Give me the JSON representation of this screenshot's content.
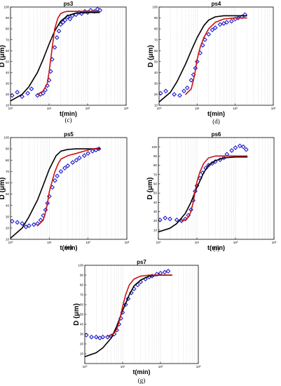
{
  "chart_data": [
    {
      "type": "scatter",
      "panel_label": "(c)",
      "title": "ps3",
      "xlabel": "t(min)",
      "ylabel": "D (μm)",
      "xscale": "log",
      "xlim": [
        1,
        1000
      ],
      "ylim": [
        10,
        100
      ],
      "yticks": [
        10,
        20,
        30,
        40,
        50,
        60,
        70,
        80,
        90,
        100
      ],
      "xtick_labels": [
        "10⁰",
        "10¹",
        "10²",
        "10³"
      ],
      "grid": "vertical minor",
      "series": [
        {
          "style": "markers",
          "marker": "diamond",
          "color": "#1f1fcf",
          "x": [
            1.1,
            1.5,
            2.0,
            2.8,
            3.5,
            5,
            6,
            7,
            8,
            9,
            10,
            11,
            12,
            14,
            16,
            18,
            20,
            23,
            26,
            30,
            35,
            40,
            50,
            60,
            70,
            85,
            100,
            120,
            150,
            180,
            210
          ],
          "y": [
            19,
            22,
            18,
            21,
            25,
            19,
            20,
            21,
            24,
            28,
            33,
            41,
            52,
            63,
            72,
            78,
            84,
            86,
            88,
            91,
            89,
            92,
            93,
            95,
            94,
            96,
            95,
            97,
            96,
            98,
            97
          ]
        },
        {
          "style": "line",
          "color": "#000000",
          "x": [
            1,
            2,
            3,
            5,
            7,
            10,
            14,
            20,
            30,
            50,
            100,
            200
          ],
          "y": [
            14,
            20,
            27,
            40,
            52,
            66,
            78,
            87,
            92,
            94.5,
            95,
            95
          ]
        },
        {
          "style": "line",
          "color": "#cc1111",
          "x": [
            5,
            7,
            9,
            10,
            12,
            14,
            17,
            20,
            25,
            30,
            50,
            100,
            200
          ],
          "y": [
            20,
            23,
            30,
            40,
            62,
            80,
            90,
            94,
            95.5,
            96,
            96,
            96,
            96
          ]
        }
      ]
    },
    {
      "type": "scatter",
      "panel_label": "(d)",
      "title": "ps4",
      "xlabel": "t(min)",
      "ylabel": "D (μm)",
      "xscale": "log",
      "xlim": [
        1,
        1000
      ],
      "ylim": [
        10,
        100
      ],
      "yticks": [
        10,
        20,
        30,
        40,
        50,
        60,
        70,
        80,
        90,
        100
      ],
      "xtick_labels": [
        "10⁰",
        "10¹",
        "10²",
        "10³"
      ],
      "grid": "vertical minor",
      "series": [
        {
          "style": "markers",
          "marker": "diamond",
          "color": "#1f1fcf",
          "x": [
            1.1,
            1.5,
            2.5,
            3.5,
            4.5,
            5.5,
            7,
            8,
            9,
            10,
            12,
            14,
            16,
            20,
            25,
            30,
            40,
            50,
            60,
            80,
            100,
            120,
            150,
            180
          ],
          "y": [
            21,
            23,
            20,
            19,
            23,
            26,
            33,
            38,
            44,
            50,
            58,
            65,
            70,
            75,
            79,
            81,
            84,
            85,
            86,
            87,
            89,
            90,
            91,
            93
          ]
        },
        {
          "style": "line",
          "color": "#000000",
          "x": [
            1,
            2,
            3,
            5,
            7,
            10,
            15,
            20,
            30,
            50,
            100,
            200
          ],
          "y": [
            13,
            22,
            32,
            48,
            60,
            72,
            83,
            88,
            91,
            92,
            92,
            92
          ]
        },
        {
          "style": "line",
          "color": "#cc1111",
          "x": [
            5,
            7,
            8,
            9,
            10,
            12,
            15,
            20,
            30,
            50,
            100,
            200
          ],
          "y": [
            20,
            25,
            33,
            42,
            52,
            63,
            72,
            80,
            86,
            89,
            90,
            90
          ]
        }
      ]
    },
    {
      "type": "scatter",
      "panel_label": "(e)",
      "title": "ps5",
      "xlabel": "t(min)",
      "ylabel": "D (μm)",
      "xscale": "log",
      "xlim": [
        1,
        1000
      ],
      "ylim": [
        10,
        100
      ],
      "yticks": [
        10,
        20,
        30,
        40,
        50,
        60,
        70,
        80,
        90,
        100
      ],
      "xtick_labels": [
        "10⁰",
        "10¹",
        "10²",
        "10³"
      ],
      "grid": "vertical minor",
      "series": [
        {
          "style": "markers",
          "marker": "diamond",
          "color": "#1f1fcf",
          "x": [
            1.1,
            1.5,
            2.0,
            2.5,
            3.0,
            4.0,
            5.0,
            6.0,
            7.0,
            8.0,
            9.0,
            10,
            12,
            14,
            16,
            20,
            25,
            30,
            40,
            50,
            60,
            80,
            100,
            130,
            160,
            190
          ],
          "y": [
            26,
            25,
            24,
            21,
            22,
            23,
            24,
            27,
            31,
            36,
            42,
            48,
            56,
            62,
            66,
            70,
            73,
            75,
            78,
            80,
            82,
            84,
            86,
            88,
            89,
            90
          ]
        },
        {
          "style": "line",
          "color": "#000000",
          "x": [
            1,
            2,
            3,
            5,
            7,
            10,
            15,
            20,
            30,
            50,
            100,
            200
          ],
          "y": [
            11,
            20,
            30,
            45,
            58,
            72,
            84,
            88,
            89.5,
            90,
            90,
            90
          ]
        },
        {
          "style": "line",
          "color": "#cc1111",
          "x": [
            5,
            7,
            8,
            9,
            10,
            12,
            14,
            17,
            20,
            30,
            50,
            100,
            200
          ],
          "y": [
            22,
            27,
            34,
            42,
            52,
            62,
            70,
            77,
            81,
            84,
            86,
            89,
            91
          ]
        }
      ]
    },
    {
      "type": "scatter",
      "panel_label": "(f)",
      "title": "ps6",
      "xlabel": "t(min)",
      "ylabel": "D (μm)",
      "xscale": "log",
      "xlim": [
        1,
        1000
      ],
      "ylim": [
        0,
        110
      ],
      "yticks": [
        10,
        20,
        30,
        40,
        50,
        60,
        70,
        80,
        90,
        100
      ],
      "xtick_labels": [
        "10⁰",
        "10¹",
        "10²",
        "10³"
      ],
      "grid": "vertical minor",
      "series": [
        {
          "style": "markers",
          "marker": "diamond",
          "color": "#1f1fcf",
          "x": [
            1.1,
            1.5,
            2.0,
            3.0,
            4.0,
            5.0,
            6.0,
            7.0,
            8.0,
            9.0,
            10,
            12,
            14,
            17,
            20,
            25,
            30,
            40,
            50,
            60,
            80,
            100,
            130,
            160,
            190
          ],
          "y": [
            21,
            23,
            22,
            21,
            20,
            22,
            26,
            32,
            42,
            52,
            58,
            66,
            72,
            77,
            80,
            82,
            84,
            86,
            88,
            92,
            96,
            99,
            101,
            100,
            97
          ]
        },
        {
          "style": "line",
          "color": "#000000",
          "x": [
            1,
            2,
            3,
            5,
            7,
            10,
            15,
            20,
            30,
            50,
            100,
            200
          ],
          "y": [
            8,
            12,
            17,
            28,
            40,
            56,
            72,
            80,
            85,
            88,
            89,
            89
          ]
        },
        {
          "style": "line",
          "color": "#cc1111",
          "x": [
            4,
            5,
            6,
            7,
            8,
            9,
            10,
            12,
            15,
            20,
            30,
            50,
            100,
            200
          ],
          "y": [
            20,
            21,
            24,
            30,
            40,
            52,
            62,
            73,
            82,
            88,
            90,
            90,
            90,
            90
          ]
        }
      ]
    },
    {
      "type": "scatter",
      "panel_label": "(g)",
      "title": "ps7",
      "xlabel": "t(min)",
      "ylabel": "D (μm)",
      "xscale": "log",
      "xlim": [
        1,
        1000
      ],
      "ylim": [
        0,
        100
      ],
      "yticks": [
        10,
        20,
        30,
        40,
        50,
        60,
        70,
        80,
        90,
        100
      ],
      "xtick_labels": [
        "10⁰",
        "10¹",
        "10²",
        "10³"
      ],
      "grid": "vertical minor",
      "series": [
        {
          "style": "markers",
          "marker": "diamond",
          "color": "#1f1fcf",
          "x": [
            1.1,
            1.5,
            2.0,
            2.5,
            3.0,
            4.0,
            5.0,
            6.0,
            7.0,
            8.0,
            9.0,
            10,
            12,
            14,
            17,
            20,
            25,
            30,
            40,
            50,
            60,
            80,
            100,
            130,
            160
          ],
          "y": [
            29,
            27,
            27,
            26,
            27,
            27,
            28,
            30,
            34,
            40,
            46,
            52,
            60,
            66,
            72,
            76,
            80,
            83,
            86,
            88,
            89,
            91,
            92,
            93,
            94
          ]
        },
        {
          "style": "line",
          "color": "#000000",
          "x": [
            1,
            2,
            3,
            5,
            7,
            10,
            15,
            20,
            30,
            50,
            100,
            200
          ],
          "y": [
            7,
            11,
            16,
            26,
            38,
            54,
            70,
            79,
            85,
            89,
            90,
            90
          ]
        },
        {
          "style": "line",
          "color": "#cc1111",
          "x": [
            4,
            5,
            6,
            7,
            8,
            9,
            10,
            12,
            15,
            20,
            30,
            50,
            100,
            200
          ],
          "y": [
            28,
            29,
            31,
            35,
            42,
            50,
            58,
            70,
            80,
            86,
            89,
            90,
            90,
            90
          ]
        }
      ]
    }
  ]
}
